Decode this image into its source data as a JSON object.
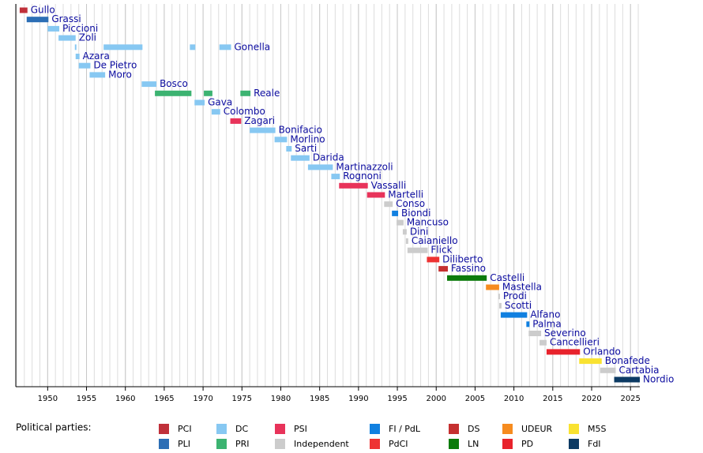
{
  "chart_data": {
    "type": "timeline",
    "xlim": [
      1945.9,
      2026.2
    ],
    "xticks": [
      1950,
      1955,
      1960,
      1965,
      1970,
      1975,
      1980,
      1985,
      1990,
      1995,
      2000,
      2005,
      2010,
      2015,
      2020,
      2025
    ],
    "minor_grid_step": 1,
    "legend_title": "Political parties:",
    "parties": [
      {
        "name": "PCI",
        "color": "#c0303a"
      },
      {
        "name": "PLI",
        "color": "#2c6eb5"
      },
      {
        "name": "DC",
        "color": "#87c8f2"
      },
      {
        "name": "PRI",
        "color": "#3cb371"
      },
      {
        "name": "PSI",
        "color": "#e8335a"
      },
      {
        "name": "Independent",
        "color": "#cccccc"
      },
      {
        "name": "FI / PdL",
        "color": "#1180e0"
      },
      {
        "name": "PdCI",
        "color": "#ee3333"
      },
      {
        "name": "DS",
        "color": "#c53030"
      },
      {
        "name": "LN",
        "color": "#0c7b0c"
      },
      {
        "name": "UDEUR",
        "color": "#f68b1f"
      },
      {
        "name": "PD",
        "color": "#e8232c"
      },
      {
        "name": "M5S",
        "color": "#f9e231"
      },
      {
        "name": "FdI",
        "color": "#0c3a63"
      }
    ],
    "rows": [
      {
        "name": "Gullo",
        "terms": [
          {
            "start": 1946.4,
            "end": 1947.4,
            "party": "PCI"
          }
        ]
      },
      {
        "name": "Grassi",
        "terms": [
          {
            "start": 1947.3,
            "end": 1950.1,
            "party": "PLI"
          }
        ]
      },
      {
        "name": "Piccioni",
        "terms": [
          {
            "start": 1950.0,
            "end": 1951.5,
            "party": "DC"
          }
        ]
      },
      {
        "name": "Zoli",
        "terms": [
          {
            "start": 1951.4,
            "end": 1953.6,
            "party": "DC"
          }
        ]
      },
      {
        "name": "Gonella",
        "terms": [
          {
            "start": 1953.5,
            "end": 1953.7,
            "party": "DC"
          },
          {
            "start": 1957.2,
            "end": 1962.2,
            "party": "DC"
          },
          {
            "start": 1968.3,
            "end": 1969.0,
            "party": "DC"
          },
          {
            "start": 1972.1,
            "end": 1973.6,
            "party": "DC"
          }
        ]
      },
      {
        "name": "Azara",
        "terms": [
          {
            "start": 1953.6,
            "end": 1954.1,
            "party": "DC"
          }
        ]
      },
      {
        "name": "De Pietro",
        "terms": [
          {
            "start": 1954.0,
            "end": 1955.5,
            "party": "DC"
          }
        ]
      },
      {
        "name": "Moro",
        "terms": [
          {
            "start": 1955.4,
            "end": 1957.4,
            "party": "DC"
          }
        ]
      },
      {
        "name": "Bosco",
        "terms": [
          {
            "start": 1962.1,
            "end": 1964.0,
            "party": "DC"
          }
        ]
      },
      {
        "name": "Reale",
        "terms": [
          {
            "start": 1963.8,
            "end": 1968.5,
            "party": "PRI"
          },
          {
            "start": 1970.1,
            "end": 1971.2,
            "party": "PRI"
          },
          {
            "start": 1974.8,
            "end": 1976.1,
            "party": "PRI"
          }
        ]
      },
      {
        "name": "Gava",
        "terms": [
          {
            "start": 1968.9,
            "end": 1970.2,
            "party": "DC"
          }
        ]
      },
      {
        "name": "Colombo",
        "terms": [
          {
            "start": 1971.1,
            "end": 1972.2,
            "party": "DC"
          }
        ]
      },
      {
        "name": "Zagari",
        "terms": [
          {
            "start": 1973.5,
            "end": 1974.9,
            "party": "PSI"
          }
        ]
      },
      {
        "name": "Bonifacio",
        "terms": [
          {
            "start": 1976.0,
            "end": 1979.3,
            "party": "DC"
          }
        ]
      },
      {
        "name": "Morlino",
        "terms": [
          {
            "start": 1979.2,
            "end": 1980.8,
            "party": "DC"
          }
        ]
      },
      {
        "name": "Sarti",
        "terms": [
          {
            "start": 1980.7,
            "end": 1981.4,
            "party": "DC"
          }
        ]
      },
      {
        "name": "Darida",
        "terms": [
          {
            "start": 1981.3,
            "end": 1983.7,
            "party": "DC"
          }
        ]
      },
      {
        "name": "Martinazzoli",
        "terms": [
          {
            "start": 1983.5,
            "end": 1986.7,
            "party": "DC"
          }
        ]
      },
      {
        "name": "Rognoni",
        "terms": [
          {
            "start": 1986.5,
            "end": 1987.6,
            "party": "DC"
          }
        ]
      },
      {
        "name": "Vassalli",
        "terms": [
          {
            "start": 1987.5,
            "end": 1991.2,
            "party": "PSI"
          }
        ]
      },
      {
        "name": "Martelli",
        "terms": [
          {
            "start": 1991.1,
            "end": 1993.4,
            "party": "PSI"
          }
        ]
      },
      {
        "name": "Conso",
        "terms": [
          {
            "start": 1993.3,
            "end": 1994.4,
            "party": "Independent"
          }
        ]
      },
      {
        "name": "Biondi",
        "terms": [
          {
            "start": 1994.3,
            "end": 1995.1,
            "party": "FI / PdL"
          }
        ]
      },
      {
        "name": "Mancuso",
        "terms": [
          {
            "start": 1994.9,
            "end": 1995.8,
            "party": "Independent"
          }
        ]
      },
      {
        "name": "Dini",
        "terms": [
          {
            "start": 1995.7,
            "end": 1996.2,
            "party": "Independent"
          }
        ]
      },
      {
        "name": "Caianiello",
        "terms": [
          {
            "start": 1996.1,
            "end": 1996.4,
            "party": "Independent"
          }
        ]
      },
      {
        "name": "Flick",
        "terms": [
          {
            "start": 1996.3,
            "end": 1998.9,
            "party": "Independent"
          }
        ]
      },
      {
        "name": "Diliberto",
        "terms": [
          {
            "start": 1998.8,
            "end": 2000.4,
            "party": "PdCI"
          }
        ]
      },
      {
        "name": "Fassino",
        "terms": [
          {
            "start": 2000.3,
            "end": 2001.5,
            "party": "DS"
          }
        ]
      },
      {
        "name": "Castelli",
        "terms": [
          {
            "start": 2001.4,
            "end": 2006.5,
            "party": "LN"
          }
        ]
      },
      {
        "name": "Mastella",
        "terms": [
          {
            "start": 2006.4,
            "end": 2008.1,
            "party": "UDEUR"
          }
        ]
      },
      {
        "name": "Prodi",
        "terms": [
          {
            "start": 2008.0,
            "end": 2008.2,
            "party": "Independent"
          }
        ]
      },
      {
        "name": "Scotti",
        "terms": [
          {
            "start": 2008.1,
            "end": 2008.4,
            "party": "Independent"
          }
        ]
      },
      {
        "name": "Alfano",
        "terms": [
          {
            "start": 2008.3,
            "end": 2011.7,
            "party": "FI / PdL"
          }
        ]
      },
      {
        "name": "Palma",
        "terms": [
          {
            "start": 2011.6,
            "end": 2012.0,
            "party": "FI / PdL"
          }
        ]
      },
      {
        "name": "Severino",
        "terms": [
          {
            "start": 2011.9,
            "end": 2013.5,
            "party": "Independent"
          }
        ]
      },
      {
        "name": "Cancellieri",
        "terms": [
          {
            "start": 2013.3,
            "end": 2014.2,
            "party": "Independent"
          }
        ]
      },
      {
        "name": "Orlando",
        "terms": [
          {
            "start": 2014.2,
            "end": 2018.5,
            "party": "PD"
          }
        ]
      },
      {
        "name": "Bonafede",
        "terms": [
          {
            "start": 2018.4,
            "end": 2021.3,
            "party": "M5S"
          }
        ]
      },
      {
        "name": "Cartabia",
        "terms": [
          {
            "start": 2021.1,
            "end": 2023.1,
            "party": "Independent"
          }
        ]
      },
      {
        "name": "Nordio",
        "terms": [
          {
            "start": 2022.9,
            "end": 2026.2,
            "party": "FdI"
          }
        ]
      }
    ]
  }
}
